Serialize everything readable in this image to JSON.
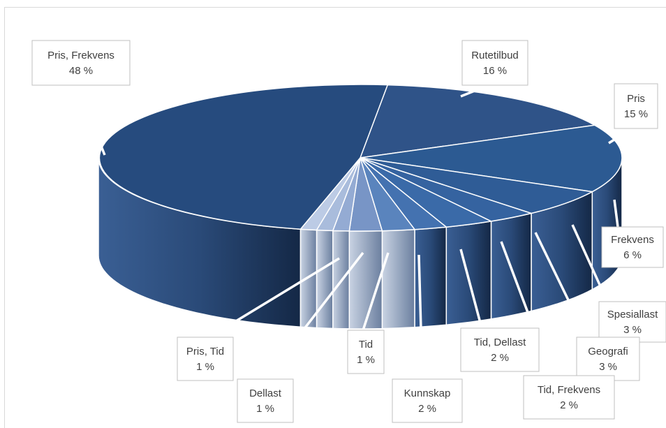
{
  "chart_data": {
    "type": "pie",
    "style": "3d-exploded-none",
    "slices": [
      {
        "label": "Rutetilbud",
        "value": 16,
        "display": "16 %",
        "color": "#2f5388"
      },
      {
        "label": "Pris",
        "value": 15,
        "display": "15 %",
        "color": "#2c5a92"
      },
      {
        "label": "Frekvens",
        "value": 6,
        "display": "6 %",
        "color": "#2f5c96"
      },
      {
        "label": "Spesiallast",
        "value": 3,
        "display": "3 %",
        "color": "#3563a0"
      },
      {
        "label": "Geografi",
        "value": 3,
        "display": "3 %",
        "color": "#3a6aa8"
      },
      {
        "label": "Tid, Frekvens",
        "value": 2,
        "display": "2 %",
        "color": "#4472b0"
      },
      {
        "label": "Tid, Dellast",
        "value": 2,
        "display": "2 %",
        "color": "#5a84bd"
      },
      {
        "label": "Kunnskap",
        "value": 2,
        "display": "2 %",
        "color": "#7895c6"
      },
      {
        "label": "Tid",
        "value": 1,
        "display": "1 %",
        "color": "#94abd3"
      },
      {
        "label": "Dellast",
        "value": 1,
        "display": "1 %",
        "color": "#a9bcdc"
      },
      {
        "label": "Pris, Tid",
        "value": 1,
        "display": "1 %",
        "color": "#bccbe5"
      },
      {
        "label": "Pris, Frekvens",
        "value": 48,
        "display": "48 %",
        "color": "#264b7e"
      }
    ]
  }
}
